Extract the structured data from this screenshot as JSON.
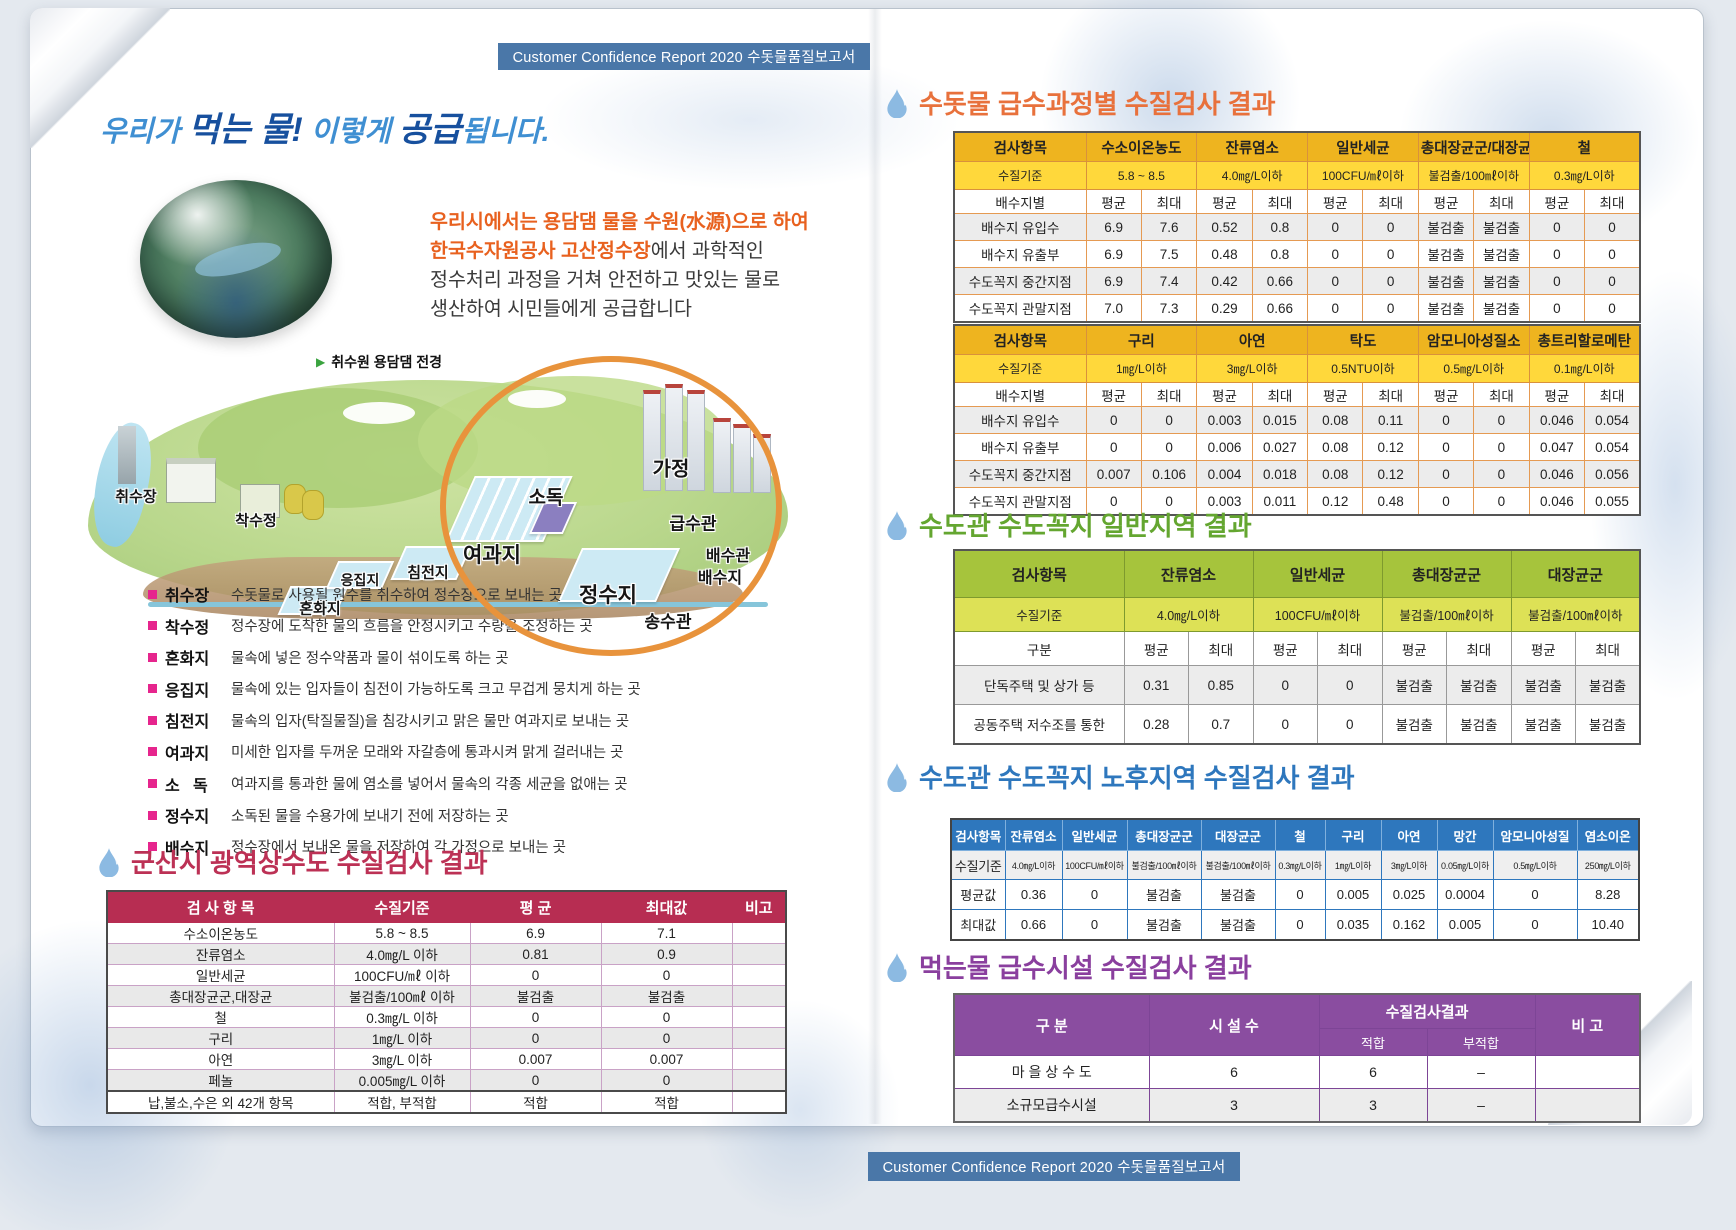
{
  "colors": {
    "bar_blue": "#4a77a8",
    "section_crimson": "#bc3155",
    "section_orange": "#e8713c",
    "section_green": "#64a630",
    "section_blue": "#2e77bd",
    "section_purple": "#8a3f9e",
    "bullet_magenta": "#e6258d",
    "gold_header": "#eeb41f",
    "drop_icon": "#8cbae2"
  },
  "page_bar": {
    "top": "Customer Confidence Report 2020 수돗물품질보고서",
    "bottom": "Customer Confidence Report 2020 수돗물품질보고서"
  },
  "intro": {
    "title": {
      "s1": "우리가 ",
      "s2": "먹는 물!",
      "s3": " 이렇게 ",
      "s4": "공급",
      "s5": "됩니다."
    },
    "caption_arrow": "▶",
    "photo_caption": "취수원 용담댐 전경",
    "lines": {
      "l1": "우리시에서는 용담댐 물을 수원(水源)으로 하여",
      "l2_hl": "한국수자원공사 고산정수장",
      "l2_rest": "에서 과학적인",
      "l3": "정수처리 과정을 거쳐 안전하고 맛있는 물로",
      "l4": "생산하여 시민들에게 공급합니다"
    }
  },
  "diagram": {
    "labels": [
      "취수장",
      "착수정",
      "혼화지",
      "응집지",
      "침전지",
      "여과지",
      "소독",
      "정수지",
      "가정",
      "급수관",
      "배수관",
      "배수지",
      "송수관"
    ]
  },
  "process_list": [
    {
      "term": "취수장",
      "desc": "수돗물로 사용될 원수를 취수하여 정수장으로 보내는 곳"
    },
    {
      "term": "착수정",
      "desc": "정수장에 도착한 물의 흐름을 안정시키고 수량을 조정하는 곳"
    },
    {
      "term": "혼화지",
      "desc": "물속에 넣은 정수약품과 물이 섞이도록 하는 곳"
    },
    {
      "term": "응집지",
      "desc": "물속에 있는 입자들이 침전이 가능하도록 크고 무겁게 뭉치게 하는 곳"
    },
    {
      "term": "침전지",
      "desc": "물속의 입자(탁질물질)을 침강시키고 맑은 물만 여과지로 보내는 곳"
    },
    {
      "term": "여과지",
      "desc": "미세한 입자를 두꺼운 모래와 자갈층에 통과시켜 맑게 걸러내는 곳"
    },
    {
      "term": "소   독",
      "desc": "여과지를 통과한 물에 염소를 넣어서 물속의 각종 세균을 없애는 곳"
    },
    {
      "term": "정수지",
      "desc": "소독된 물을 수용가에 보내기 전에 저장하는 곳"
    },
    {
      "term": "배수지",
      "desc": "정수장에서 보내온 물을 저장하여 각 가정으로 보내는 곳"
    }
  ],
  "left_section": {
    "title": "군산시 광역상수도 수질검사 결과",
    "headers": [
      "검 사 항 목",
      "수질기준",
      "평 균",
      "최대값",
      "비고"
    ],
    "rows": [
      [
        "수소이온농도",
        "5.8 ~ 8.5",
        "6.9",
        "7.1",
        ""
      ],
      [
        "잔류염소",
        "4.0㎎/L 이하",
        "0.81",
        "0.9",
        ""
      ],
      [
        "일반세균",
        "100CFU/㎖ 이하",
        "0",
        "0",
        ""
      ],
      [
        "총대장균군,대장균",
        "불검출/100㎖ 이하",
        "불검출",
        "불검출",
        ""
      ],
      [
        "철",
        "0.3㎎/L 이하",
        "0",
        "0",
        ""
      ],
      [
        "구리",
        "1㎎/L 이하",
        "0",
        "0",
        ""
      ],
      [
        "아연",
        "3㎎/L 이하",
        "0.007",
        "0.007",
        ""
      ],
      [
        "페놀",
        "0.005㎎/L 이하",
        "0",
        "0",
        ""
      ],
      [
        "납,불소,수은 외 42개 항목",
        "적합, 부적합",
        "적합",
        "적합",
        ""
      ]
    ]
  },
  "right": {
    "s1": {
      "title": "수돗물 급수과정별 수질검사 결과",
      "row_header": "검사항목",
      "std_label": "수질기준",
      "sub_label": "배수지별",
      "avg": "평균",
      "max": "최대",
      "t1": {
        "groups": [
          "수소이온농도",
          "잔류염소",
          "일반세균",
          "총대장균군/대장균군",
          "철"
        ],
        "stds": [
          "5.8 ~ 8.5",
          "4.0㎎/L이하",
          "100CFU/㎖이하",
          "불검출/100㎖이하",
          "0.3㎎/L이하"
        ],
        "rows": [
          [
            "배수지 유입수",
            "6.9",
            "7.6",
            "0.52",
            "0.8",
            "0",
            "0",
            "불검출",
            "불검출",
            "0",
            "0"
          ],
          [
            "배수지 유출부",
            "6.9",
            "7.5",
            "0.48",
            "0.8",
            "0",
            "0",
            "불검출",
            "불검출",
            "0",
            "0"
          ],
          [
            "수도꼭지 중간지점",
            "6.9",
            "7.4",
            "0.42",
            "0.66",
            "0",
            "0",
            "불검출",
            "불검출",
            "0",
            "0"
          ],
          [
            "수도꼭지 관말지점",
            "7.0",
            "7.3",
            "0.29",
            "0.66",
            "0",
            "0",
            "불검출",
            "불검출",
            "0",
            "0"
          ]
        ]
      },
      "t2": {
        "groups": [
          "구리",
          "아연",
          "탁도",
          "암모니아성질소",
          "총트리할로메탄"
        ],
        "stds": [
          "1㎎/L이하",
          "3㎎/L이하",
          "0.5NTU이하",
          "0.5㎎/L이하",
          "0.1㎎/L이하"
        ],
        "rows": [
          [
            "배수지 유입수",
            "0",
            "0",
            "0.003",
            "0.015",
            "0.08",
            "0.11",
            "0",
            "0",
            "0.046",
            "0.054"
          ],
          [
            "배수지 유출부",
            "0",
            "0",
            "0.006",
            "0.027",
            "0.08",
            "0.12",
            "0",
            "0",
            "0.047",
            "0.054"
          ],
          [
            "수도꼭지 중간지점",
            "0.007",
            "0.106",
            "0.004",
            "0.018",
            "0.08",
            "0.12",
            "0",
            "0",
            "0.046",
            "0.056"
          ],
          [
            "수도꼭지 관말지점",
            "0",
            "0",
            "0.003",
            "0.011",
            "0.12",
            "0.48",
            "0",
            "0",
            "0.046",
            "0.055"
          ]
        ]
      }
    },
    "s2": {
      "title": "수도관 수도꼭지 일반지역 결과",
      "row_header": "검사항목",
      "std_label": "수질기준",
      "sub_label": "구분",
      "avg": "평균",
      "max": "최대",
      "groups": [
        "잔류염소",
        "일반세균",
        "총대장균군",
        "대장균군"
      ],
      "stds": [
        "4.0㎎/L이하",
        "100CFU/㎖이하",
        "불검출/100㎖이하",
        "불검출/100㎖이하"
      ],
      "rows": [
        [
          "단독주택 및 상가 등",
          "0.31",
          "0.85",
          "0",
          "0",
          "불검출",
          "불검출",
          "불검출",
          "불검출"
        ],
        [
          "공동주택 저수조를 통한",
          "0.28",
          "0.7",
          "0",
          "0",
          "불검출",
          "불검출",
          "불검출",
          "불검출"
        ]
      ]
    },
    "s3": {
      "title": "수도관 수도꼭지 노후지역 수질검사 결과",
      "headers": [
        "검사항목",
        "잔류염소",
        "일반세균",
        "총대장균군",
        "대장균군",
        "철",
        "구리",
        "아연",
        "망간",
        "암모니아성질",
        "염소이온"
      ],
      "std_label": "수질기준",
      "stds": [
        "4.0㎎/L이하",
        "100CFU/㎖이하",
        "불검출/100㎖이하",
        "불검출/100㎖이하",
        "0.3㎎/L이하",
        "1㎎/L이하",
        "3㎎/L이하",
        "0.05㎎/L이하",
        "0.5㎎/L이하",
        "250㎎/L이하"
      ],
      "rows": [
        [
          "평균값",
          "0.36",
          "0",
          "불검출",
          "불검출",
          "0",
          "0.005",
          "0.025",
          "0.0004",
          "0",
          "8.28"
        ],
        [
          "최대값",
          "0.66",
          "0",
          "불검출",
          "불검출",
          "0",
          "0.035",
          "0.162",
          "0.005",
          "0",
          "10.40"
        ]
      ]
    },
    "s4": {
      "title": "먹는물 급수시설 수질검사 결과",
      "col1": "구      분",
      "col2": "시 설 수",
      "col3": "수질검사결과",
      "col4": "비      고",
      "sub1": "적합",
      "sub2": "부적합",
      "rows": [
        [
          "마 을 상 수 도",
          "6",
          "6",
          "–",
          ""
        ],
        [
          "소규모급수시설",
          "3",
          "3",
          "–",
          ""
        ]
      ]
    }
  }
}
